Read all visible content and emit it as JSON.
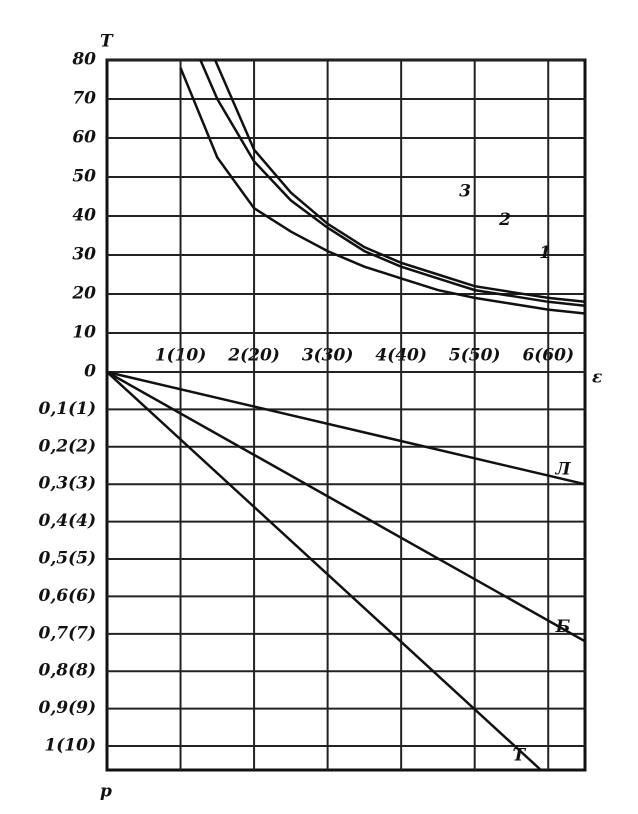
{
  "chart_data": [
    {
      "type": "line",
      "y_label": "T",
      "x_label": "ε",
      "xlim": [
        0,
        6.5
      ],
      "ylim": [
        0,
        80
      ],
      "xticks": [
        {
          "value": 1,
          "label": "1(10)"
        },
        {
          "value": 2,
          "label": "2(20)"
        },
        {
          "value": 3,
          "label": "3(30)"
        },
        {
          "value": 4,
          "label": "4(40)"
        },
        {
          "value": 5,
          "label": "5(50)"
        },
        {
          "value": 6,
          "label": "6(60)"
        }
      ],
      "yticks": [
        0,
        10,
        20,
        30,
        40,
        50,
        60,
        70,
        80
      ],
      "grid": true,
      "series": [
        {
          "name": "1",
          "color": "#111",
          "x": [
            1.0,
            1.5,
            2,
            2.5,
            3,
            3.5,
            4,
            4.5,
            5,
            5.5,
            6,
            6.5
          ],
          "values": [
            78,
            55,
            42,
            36,
            31,
            27,
            24,
            21,
            19,
            17.5,
            16,
            15
          ]
        },
        {
          "name": "2",
          "color": "#111",
          "x": [
            1.27,
            1.5,
            2,
            2.5,
            3,
            3.5,
            4,
            4.5,
            5,
            5.5,
            6,
            6.5
          ],
          "values": [
            80,
            70,
            54,
            44,
            37,
            31,
            27,
            24,
            21,
            19.5,
            18,
            17
          ]
        },
        {
          "name": "3",
          "color": "#111",
          "x": [
            1.47,
            2,
            2.5,
            3,
            3.5,
            4,
            4.5,
            5,
            5.5,
            6,
            6.5
          ],
          "values": [
            80,
            57,
            46,
            38,
            32,
            28,
            25,
            22,
            20.5,
            19,
            18
          ]
        }
      ]
    },
    {
      "type": "line",
      "y_label": "p",
      "y_inverted": true,
      "xlim": [
        0,
        6.5
      ],
      "ylim": [
        0,
        1.064
      ],
      "yticks": [
        {
          "value": 0.1,
          "label": "0,1(1)"
        },
        {
          "value": 0.2,
          "label": "0,2(2)"
        },
        {
          "value": 0.3,
          "label": "0,3(3)"
        },
        {
          "value": 0.4,
          "label": "0,4(4)"
        },
        {
          "value": 0.5,
          "label": "0,5(5)"
        },
        {
          "value": 0.6,
          "label": "0,6(6)"
        },
        {
          "value": 0.7,
          "label": "0,7(7)"
        },
        {
          "value": 0.8,
          "label": "0,8(8)"
        },
        {
          "value": 0.9,
          "label": "0,9(9)"
        },
        {
          "value": 1,
          "label": "1(10)"
        }
      ],
      "grid": true,
      "series": [
        {
          "name": "Л",
          "color": "#111",
          "x": [
            0,
            6.5
          ],
          "values": [
            0,
            0.3
          ]
        },
        {
          "name": "Б",
          "color": "#111",
          "x": [
            0,
            6.5
          ],
          "values": [
            0,
            0.72
          ]
        },
        {
          "name": "Т",
          "color": "#111",
          "x": [
            0,
            5.9
          ],
          "values": [
            0,
            1.064
          ]
        }
      ]
    }
  ]
}
